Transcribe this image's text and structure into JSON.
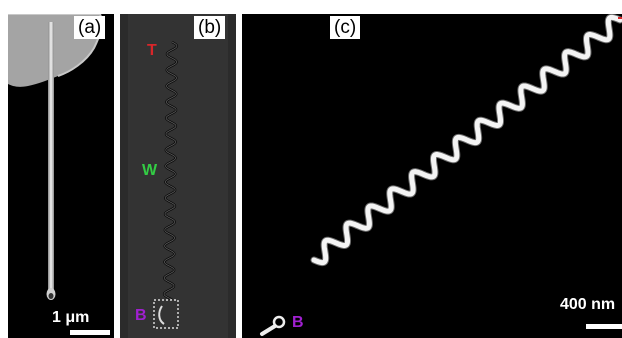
{
  "panels": [
    {
      "tag": "(a)",
      "scale_label": "1 μm"
    },
    {
      "tag": "(b)",
      "markers": {
        "top": "T",
        "middle": "W",
        "bottom": "B"
      }
    },
    {
      "tag": "(c)",
      "scale_label": "400 nm",
      "marker_bottom": "B"
    }
  ],
  "colors": {
    "marker_T": "#d8262a",
    "marker_W": "#33cc44",
    "marker_B": "#a020d0",
    "background": "#000000",
    "panel_b_background": "#2b2b2b"
  }
}
